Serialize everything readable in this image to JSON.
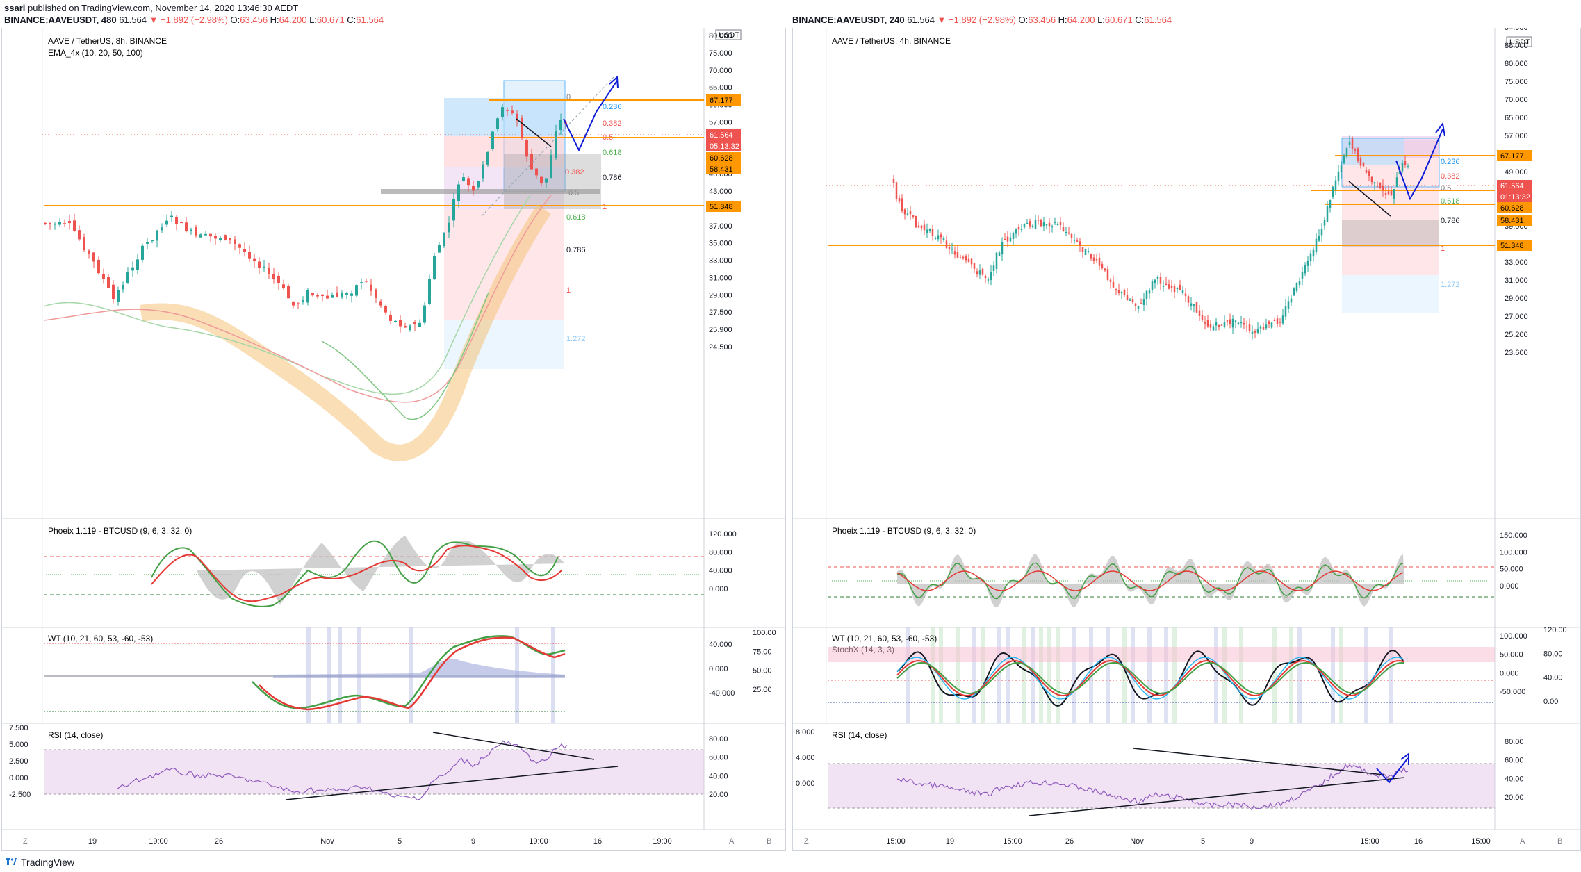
{
  "header": {
    "author": "ssari",
    "published_text": "published on TradingView.com, November 14, 2020 13:46:30 AEDT"
  },
  "left": {
    "quote": {
      "symbol": "BINANCE:AAVEUSDT, 480",
      "last": "61.564",
      "change": "▼ −1.892 (−2.98%)",
      "o_label": "O:",
      "o": "63.456",
      "h_label": "H:",
      "h": "64.200",
      "l_label": "L:",
      "l": "60.671",
      "c_label": "C:",
      "c": "61.564"
    },
    "main_title": "AAVE / TetherUS, 8h, BINANCE",
    "indicator": "EMA_4x (10, 20, 50, 100)",
    "currency": "USDT",
    "price_ticks": [
      "80.000",
      "75.000",
      "70.000",
      "65.000",
      "60.000",
      "57.000",
      "54.000",
      "50.000",
      "46.000",
      "43.000",
      "40.000",
      "37.000",
      "35.000",
      "33.000",
      "31.000",
      "29.000",
      "27.500",
      "25.900",
      "24.500"
    ],
    "price_labels": {
      "p67": "67.177",
      "p61": "61.564",
      "timer": "05:13:32",
      "p60": "60.628",
      "p58": "58.431",
      "p51": "51.348"
    },
    "fib_upper": [
      "0",
      "0.236",
      "0.382",
      "0.5",
      "0.618",
      "0.786",
      "1"
    ],
    "fib_lower": [
      "0.382",
      "0.5",
      "0.618",
      "0.786",
      "1",
      "1.272"
    ],
    "phoeix_title": "Phoeix 1.119 - BTCUSD (9, 6, 3, 32, 0)",
    "phoeix_ticks": [
      "120.000",
      "80.000",
      "40.000",
      "0.000"
    ],
    "wt_title": "WT (10, 21, 60, 53, -60, -53)",
    "wt_ticks_inner": [
      "40.000",
      "0.000",
      "-40.000"
    ],
    "wt_ticks_outer": [
      "100.00",
      "75.00",
      "50.00",
      "25.00"
    ],
    "rsi_title": "RSI (14, close)",
    "rsi_ticks_left": [
      "7.500",
      "5.000",
      "2.500",
      "0.000",
      "-2.500"
    ],
    "rsi_ticks_right": [
      "80.00",
      "60.00",
      "40.00",
      "20.00"
    ],
    "time_labels": [
      "19",
      "19:00",
      "26",
      "Nov",
      "5",
      "9",
      "19:00",
      "16",
      "19:00"
    ],
    "corner_left": "Z",
    "corner_a": "A",
    "corner_b": "B"
  },
  "right": {
    "quote": {
      "symbol": "BINANCE:AAVEUSDT, 240",
      "last": "61.564",
      "change": "▼ −1.892 (−2.98%)",
      "o_label": "O:",
      "o": "63.456",
      "h_label": "H:",
      "h": "64.200",
      "l_label": "L:",
      "l": "60.671",
      "c_label": "C:",
      "c": "61.564"
    },
    "main_title": "AAVE / TetherUS, 4h, BINANCE",
    "currency": "USDT",
    "price_ticks": [
      "94.000",
      "88.000",
      "80.000",
      "75.000",
      "70.000",
      "65.000",
      "57.000",
      "53.000",
      "49.000",
      "45.000",
      "42.000",
      "39.000",
      "36.000",
      "33.000",
      "31.000",
      "29.000",
      "27.000",
      "25.200",
      "23.600"
    ],
    "price_labels": {
      "p67": "67.177",
      "p61": "61.564",
      "timer": "01:13:32",
      "p60": "60.628",
      "p58": "58.431",
      "p51": "51.348"
    },
    "fib": [
      "0.236",
      "0.382",
      "0.5",
      "0.618",
      "0.786",
      "1",
      "1.272"
    ],
    "phoeix_title": "Phoeix 1.119 - BTCUSD (9, 6, 3, 32, 0)",
    "phoeix_ticks": [
      "150.000",
      "100.000",
      "50.000",
      "0.000"
    ],
    "wt_title": "WT (10, 21, 60, 53, -60, -53)",
    "stoch_title": "StochX (14, 3, 3)",
    "wt_ticks_inner": [
      "100.000",
      "50.000",
      "0.000",
      "-50.000"
    ],
    "wt_ticks_outer": [
      "120.00",
      "80.00",
      "40.00",
      "0.00"
    ],
    "rsi_title": "RSI (14, close)",
    "rsi_ticks_left": [
      "8.000",
      "4.000",
      "0.000"
    ],
    "rsi_ticks_right": [
      "80.00",
      "60.00",
      "40.00",
      "20.00"
    ],
    "time_labels": [
      "15:00",
      "19",
      "15:00",
      "26",
      "Nov",
      "5",
      "9",
      "15:00",
      "16",
      "15:00"
    ],
    "corner_left": "Z",
    "corner_a": "A",
    "corner_b": "B"
  },
  "footer": {
    "brand": "TradingView"
  },
  "colors": {
    "up": "#26a69a",
    "down": "#ef5350",
    "orange": "#ff9800",
    "blue_arrow": "#0d1bd6",
    "fib_blue": "#2196f3",
    "fib_green": "#4caf50",
    "rsi_purple": "#8e5bbd"
  }
}
